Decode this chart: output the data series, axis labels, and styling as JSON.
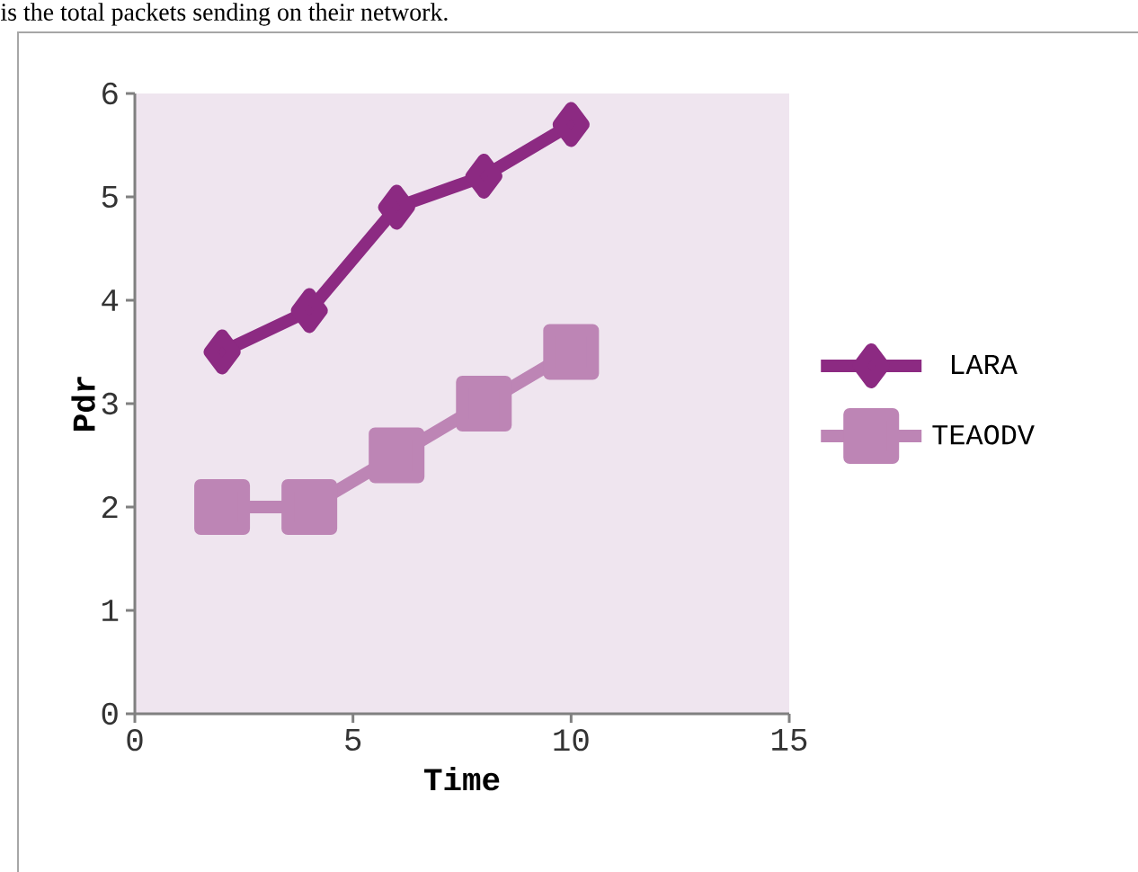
{
  "chart_data": {
    "type": "line",
    "xlabel": "Time",
    "ylabel": "Pdr",
    "annotations": [
      "is the total packets sending on their network."
    ],
    "xlim": [
      0,
      15
    ],
    "xticks": [
      0,
      5,
      10,
      15
    ],
    "ylim": [
      0,
      6
    ],
    "yticks": [
      0,
      1,
      2,
      3,
      4,
      5,
      6
    ],
    "legend": "right",
    "grid": false,
    "line_style": "solid",
    "series": [
      {
        "name": "LARA",
        "color": "#8c2a82",
        "marker": "diamond",
        "x": [
          2,
          4,
          6,
          8,
          10
        ],
        "values": [
          3.5,
          3.9,
          4.9,
          5.2,
          5.7
        ]
      },
      {
        "name": "TEAODV",
        "color": "#bd85b5",
        "marker": "square",
        "x": [
          2,
          4,
          6,
          8,
          10
        ],
        "values": [
          2.0,
          2.0,
          2.5,
          3.0,
          3.5
        ]
      }
    ]
  }
}
